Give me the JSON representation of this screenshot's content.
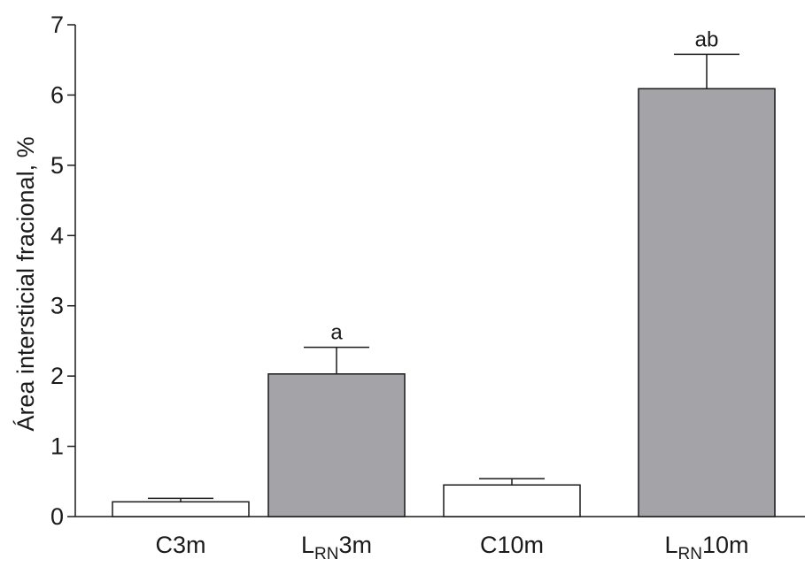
{
  "chart_data": {
    "type": "bar",
    "title": "",
    "ylabel": "Área intersticial fracional, %",
    "xlabel": "",
    "ylim": [
      0,
      7
    ],
    "yticks": [
      0,
      1,
      2,
      3,
      4,
      5,
      6,
      7
    ],
    "grid": false,
    "legend": "none",
    "categories": [
      {
        "main": "C",
        "sub": "",
        "suffix": "3m"
      },
      {
        "main": "L",
        "sub": "RN",
        "suffix": "3m"
      },
      {
        "main": "C",
        "sub": "",
        "suffix": "10m"
      },
      {
        "main": "L",
        "sub": "RN",
        "suffix": "10m"
      }
    ],
    "values": [
      0.21,
      2.03,
      0.45,
      6.09
    ],
    "errors": [
      0.05,
      0.38,
      0.09,
      0.49
    ],
    "significance": [
      "",
      "a",
      "",
      "ab"
    ],
    "colors": [
      "#ffffff",
      "#a3a3a8",
      "#ffffff",
      "#a3a3a8"
    ]
  }
}
